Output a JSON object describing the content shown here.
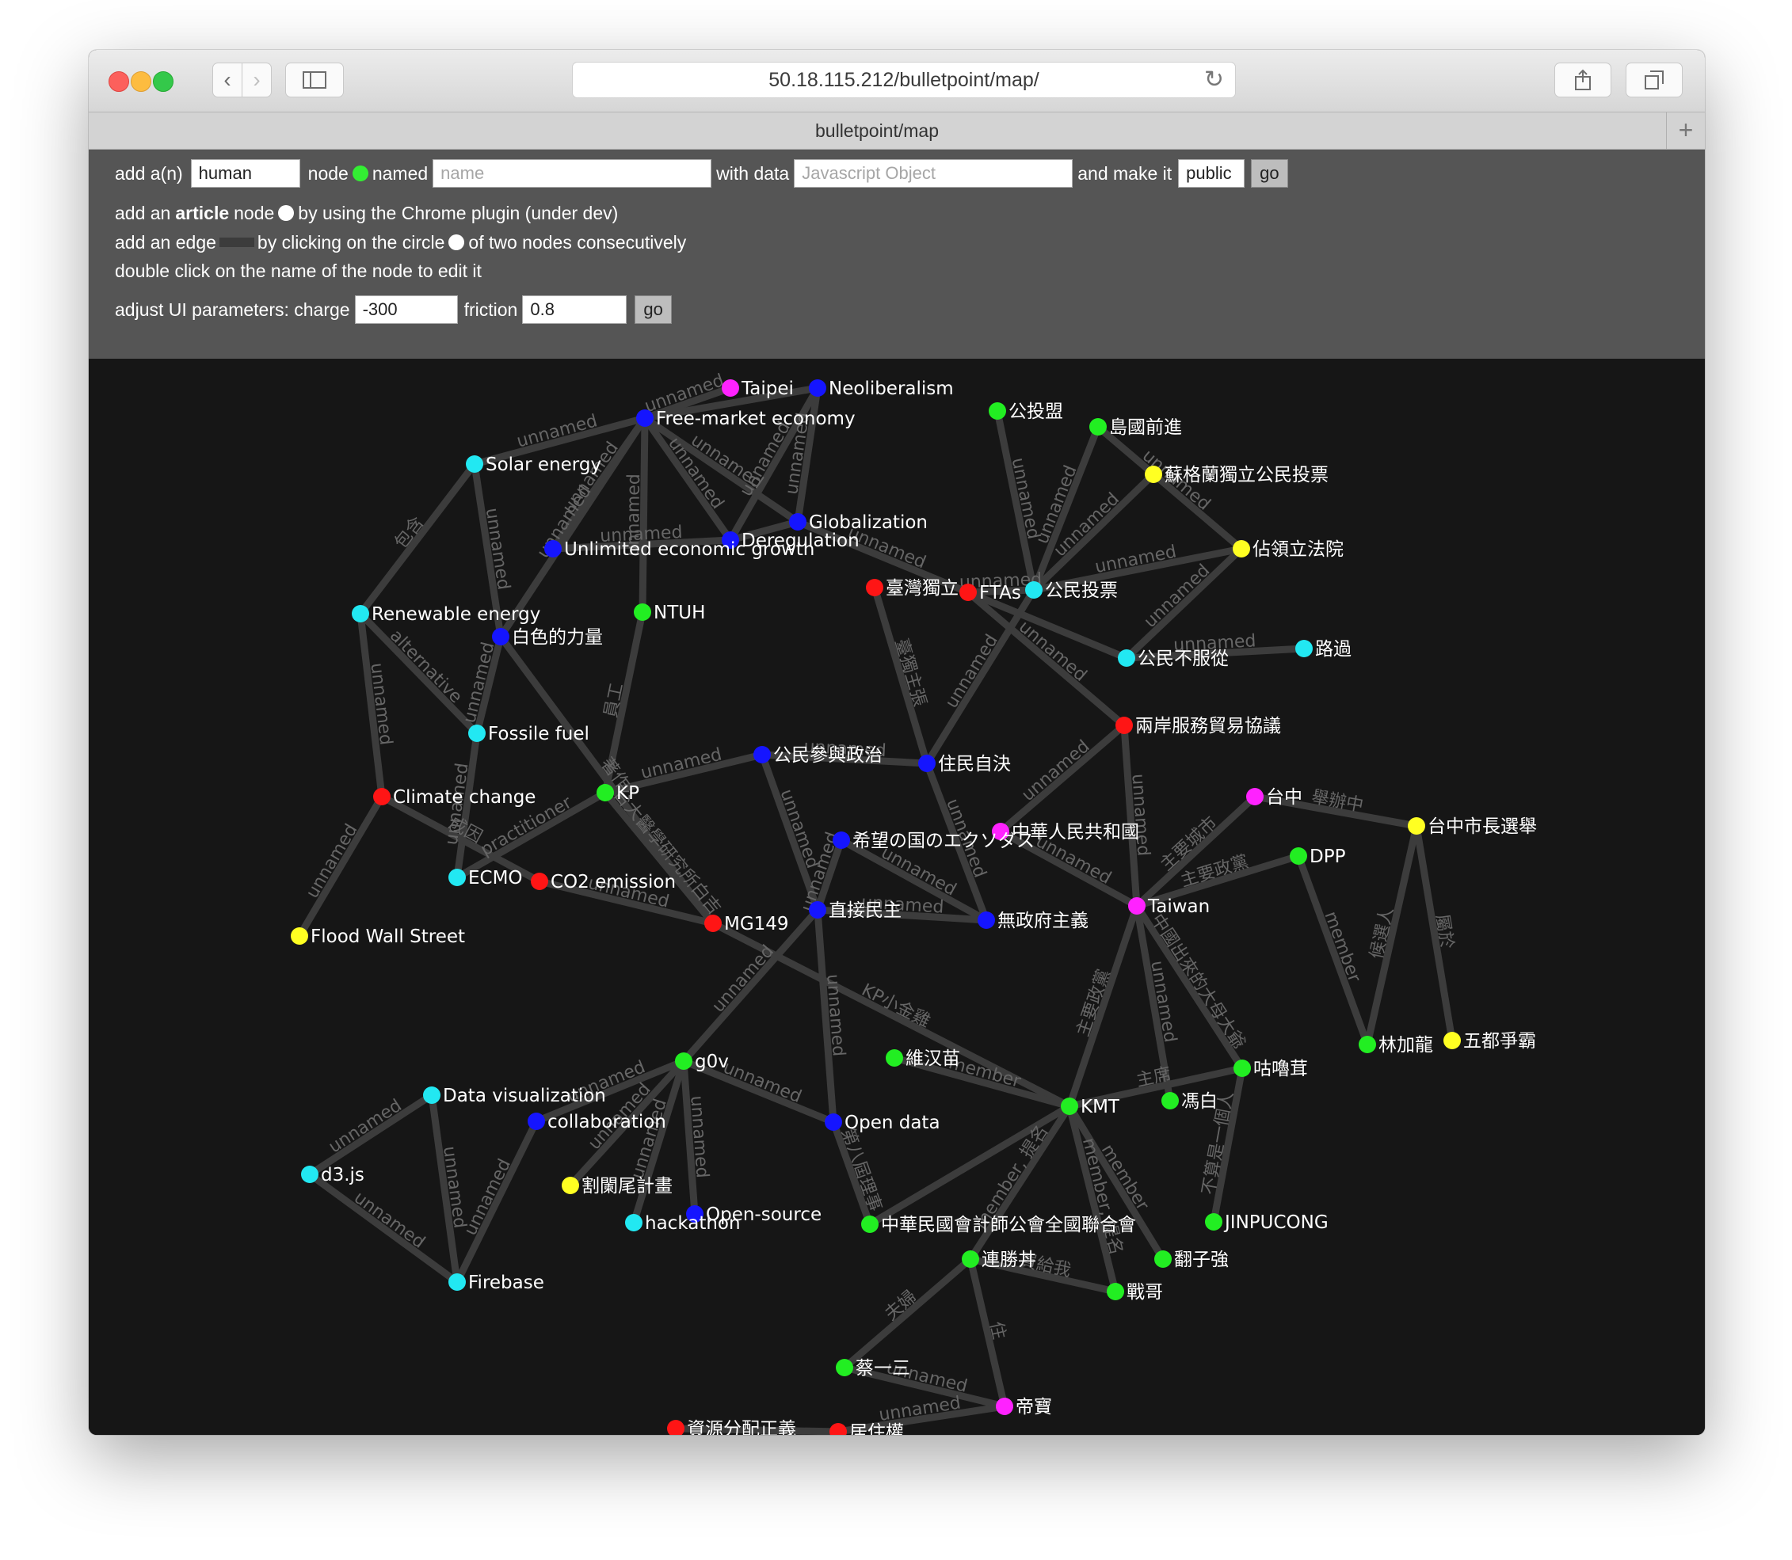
{
  "browser": {
    "url": "50.18.115.212/bulletpoint/map/",
    "tab_title": "bulletpoint/map"
  },
  "controls": {
    "line1": {
      "add_prefix": "add a(n)",
      "type_value": "human",
      "node_word": "node",
      "named_word": "named",
      "name_placeholder": "name",
      "with_data_word": "with data",
      "data_placeholder": "Javascript Object",
      "make_it_word": "and make it",
      "visibility_value": "public",
      "go_label": "go"
    },
    "line2": {
      "prefix": "add an",
      "bold": "article",
      "node_word": "node",
      "rest": "by using the Chrome plugin (under dev)"
    },
    "line3": {
      "prefix": "add an edge",
      "middle": "by clicking on the circle",
      "rest": "of two nodes consecutively"
    },
    "line4": {
      "text": "double click on the name of the node to edit it"
    },
    "line5": {
      "prefix": "adjust UI parameters: charge",
      "charge_value": "-300",
      "friction_word": "friction",
      "friction_value": "0.8",
      "go_label": "go"
    }
  },
  "colors": {
    "human_node": "#33ee33",
    "article_node": "#ffffff",
    "edge": "#3c3c3c",
    "edge_label": "#666666",
    "node_label": "#ffffff",
    "palette": {
      "green": "#22ee22",
      "blue": "#1515ff",
      "cyan": "#22e8f2",
      "red": "#ff1515",
      "magenta": "#ff22ff",
      "yellow": "#ffff22"
    }
  },
  "graph": {
    "nodes": [
      {
        "id": "taipei",
        "label": "Taipei",
        "color": "magenta"
      },
      {
        "id": "neolib",
        "label": "Neoliberalism",
        "color": "blue"
      },
      {
        "id": "fme",
        "label": "Free-market economy",
        "color": "blue"
      },
      {
        "id": "solar",
        "label": "Solar energy",
        "color": "cyan"
      },
      {
        "id": "gong",
        "label": "公投盟",
        "color": "green"
      },
      {
        "id": "dao",
        "label": "島國前進",
        "color": "green"
      },
      {
        "id": "scot",
        "label": "蘇格蘭獨立公民投票",
        "color": "yellow"
      },
      {
        "id": "glob",
        "label": "Globalization",
        "color": "blue"
      },
      {
        "id": "dereg",
        "label": "Deregulation",
        "color": "blue"
      },
      {
        "id": "ueg",
        "label": "Unlimited economic growth",
        "color": "blue"
      },
      {
        "id": "occ",
        "label": "佔領立法院",
        "color": "yellow"
      },
      {
        "id": "twind",
        "label": "臺灣獨立",
        "color": "red"
      },
      {
        "id": "ftas",
        "label": "FTAs",
        "color": "red"
      },
      {
        "id": "ref",
        "label": "公民投票",
        "color": "cyan"
      },
      {
        "id": "renew",
        "label": "Renewable energy",
        "color": "cyan"
      },
      {
        "id": "ntuh",
        "label": "NTUH",
        "color": "green"
      },
      {
        "id": "white",
        "label": "白色的力量",
        "color": "blue"
      },
      {
        "id": "civdis",
        "label": "公民不服從",
        "color": "cyan"
      },
      {
        "id": "luguo",
        "label": "路過",
        "color": "cyan"
      },
      {
        "id": "cssta",
        "label": "兩岸服務貿易協議",
        "color": "red"
      },
      {
        "id": "fossil",
        "label": "Fossile fuel",
        "color": "cyan"
      },
      {
        "id": "civpol",
        "label": "公民參與政治",
        "color": "blue"
      },
      {
        "id": "selfdet",
        "label": "住民自決",
        "color": "blue"
      },
      {
        "id": "kp",
        "label": "KP",
        "color": "green"
      },
      {
        "id": "climate",
        "label": "Climate change",
        "color": "red"
      },
      {
        "id": "taichung",
        "label": "台中",
        "color": "magenta"
      },
      {
        "id": "tcmayor",
        "label": "台中市長選舉",
        "color": "yellow"
      },
      {
        "id": "prc",
        "label": "中華人民共和國",
        "color": "magenta"
      },
      {
        "id": "hope",
        "label": "希望の国のエクソダス",
        "color": "blue"
      },
      {
        "id": "dpp",
        "label": "DPP",
        "color": "green"
      },
      {
        "id": "ecmo",
        "label": "ECMO",
        "color": "cyan"
      },
      {
        "id": "co2",
        "label": "CO2 emission",
        "color": "red"
      },
      {
        "id": "taiwan",
        "label": "Taiwan",
        "color": "magenta"
      },
      {
        "id": "direct",
        "label": "直接民主",
        "color": "blue"
      },
      {
        "id": "anarch",
        "label": "無政府主義",
        "color": "blue"
      },
      {
        "id": "flood",
        "label": "Flood Wall Street",
        "color": "yellow"
      },
      {
        "id": "mg149",
        "label": "MG149",
        "color": "red"
      },
      {
        "id": "lin",
        "label": "林加龍",
        "color": "green"
      },
      {
        "id": "wudu",
        "label": "五都爭霸",
        "color": "yellow"
      },
      {
        "id": "g0v",
        "label": "g0v",
        "color": "green"
      },
      {
        "id": "weihan",
        "label": "維汉苗",
        "color": "green"
      },
      {
        "id": "gulu",
        "label": "咕嚕茸",
        "color": "green"
      },
      {
        "id": "dataviz",
        "label": "Data visualization",
        "color": "cyan"
      },
      {
        "id": "kmt",
        "label": "KMT",
        "color": "green"
      },
      {
        "id": "fengbai",
        "label": "馮白",
        "color": "green"
      },
      {
        "id": "collab",
        "label": "collaboration",
        "color": "blue"
      },
      {
        "id": "opendata",
        "label": "Open data",
        "color": "blue"
      },
      {
        "id": "d3",
        "label": "d3.js",
        "color": "cyan"
      },
      {
        "id": "gelan",
        "label": "割闌尾計畫",
        "color": "yellow"
      },
      {
        "id": "opensource",
        "label": "Open-source",
        "color": "blue"
      },
      {
        "id": "hackathon",
        "label": "hackathon",
        "color": "cyan"
      },
      {
        "id": "cpa",
        "label": "中華民國會計師公會全國聯合會",
        "color": "green"
      },
      {
        "id": "jinpu",
        "label": "JINPUCONG",
        "color": "green"
      },
      {
        "id": "lianshengbing",
        "label": "連勝丼",
        "color": "green"
      },
      {
        "id": "fanzi",
        "label": "翻子強",
        "color": "green"
      },
      {
        "id": "firebase",
        "label": "Firebase",
        "color": "cyan"
      },
      {
        "id": "zhange",
        "label": "戰哥",
        "color": "green"
      },
      {
        "id": "caiyisan",
        "label": "蔡一三",
        "color": "green"
      },
      {
        "id": "dibao",
        "label": "帝寶",
        "color": "magenta"
      },
      {
        "id": "resdist",
        "label": "資源分配正義",
        "color": "red"
      },
      {
        "id": "housing",
        "label": "居住權",
        "color": "red"
      }
    ],
    "edges": [
      {
        "s": "taipei",
        "t": "fme",
        "label": "unnamed"
      },
      {
        "s": "neolib",
        "t": "fme",
        "label": ""
      },
      {
        "s": "neolib",
        "t": "dereg",
        "label": "unnamed"
      },
      {
        "s": "neolib",
        "t": "glob",
        "label": "unnamed"
      },
      {
        "s": "fme",
        "t": "solar",
        "label": "unnamed"
      },
      {
        "s": "fme",
        "t": "white",
        "label": "unnamed"
      },
      {
        "s": "fme",
        "t": "ueg",
        "label": "unnamed"
      },
      {
        "s": "fme",
        "t": "ntuh",
        "label": "unnamed"
      },
      {
        "s": "fme",
        "t": "dereg",
        "label": "unnamed"
      },
      {
        "s": "fme",
        "t": "glob",
        "label": "unnamed"
      },
      {
        "s": "solar",
        "t": "renew",
        "label": "包含"
      },
      {
        "s": "solar",
        "t": "white",
        "label": "unnamed"
      },
      {
        "s": "ueg",
        "t": "dereg",
        "label": "unnamed"
      },
      {
        "s": "dereg",
        "t": "glob",
        "label": ""
      },
      {
        "s": "glob",
        "t": "ftas",
        "label": "unnamed"
      },
      {
        "s": "gong",
        "t": "ref",
        "label": "unnamed"
      },
      {
        "s": "dao",
        "t": "ref",
        "label": "unnamed"
      },
      {
        "s": "dao",
        "t": "occ",
        "label": "unnamed"
      },
      {
        "s": "scot",
        "t": "ref",
        "label": "unnamed"
      },
      {
        "s": "occ",
        "t": "ref",
        "label": "unnamed"
      },
      {
        "s": "occ",
        "t": "civdis",
        "label": "unnamed"
      },
      {
        "s": "ref",
        "t": "ftas",
        "label": "unnamed"
      },
      {
        "s": "ref",
        "t": "selfdet",
        "label": "unnamed"
      },
      {
        "s": "ftas",
        "t": "cssta",
        "label": "unnamed"
      },
      {
        "s": "ftas",
        "t": "civdis",
        "label": ""
      },
      {
        "s": "civdis",
        "t": "luguo",
        "label": "unnamed"
      },
      {
        "s": "twind",
        "t": "selfdet",
        "label": "臺獨主張"
      },
      {
        "s": "renew",
        "t": "fossil",
        "label": "alternative"
      },
      {
        "s": "renew",
        "t": "climate",
        "label": "unnamed"
      },
      {
        "s": "white",
        "t": "fossil",
        "label": "unnamed"
      },
      {
        "s": "white",
        "t": "mg149",
        "label": "著作"
      },
      {
        "s": "ntuh",
        "t": "kp",
        "label": "員工"
      },
      {
        "s": "fossil",
        "t": "ecmo",
        "label": "unnamed"
      },
      {
        "s": "kp",
        "t": "civpol",
        "label": "unnamed"
      },
      {
        "s": "kp",
        "t": "mg149",
        "label": "台大醫學研究所白吉"
      },
      {
        "s": "kp",
        "t": "ecmo",
        "label": "practitioner"
      },
      {
        "s": "climate",
        "t": "flood",
        "label": "unnamed"
      },
      {
        "s": "climate",
        "t": "co2",
        "label": "成因"
      },
      {
        "s": "co2",
        "t": "mg149",
        "label": "unnamed"
      },
      {
        "s": "civpol",
        "t": "selfdet",
        "label": "unnamed"
      },
      {
        "s": "civpol",
        "t": "direct",
        "label": "unnamed"
      },
      {
        "s": "selfdet",
        "t": "anarch",
        "label": "unnamed"
      },
      {
        "s": "cssta",
        "t": "prc",
        "label": "unnamed"
      },
      {
        "s": "cssta",
        "t": "taiwan",
        "label": "unnamed"
      },
      {
        "s": "prc",
        "t": "taiwan",
        "label": "unnamed"
      },
      {
        "s": "hope",
        "t": "direct",
        "label": "unnamed"
      },
      {
        "s": "hope",
        "t": "anarch",
        "label": "unnamed"
      },
      {
        "s": "direct",
        "t": "anarch",
        "label": "unnamed"
      },
      {
        "s": "direct",
        "t": "g0v",
        "label": "unnamed"
      },
      {
        "s": "direct",
        "t": "opendata",
        "label": "unnamed"
      },
      {
        "s": "mg149",
        "t": "kmt",
        "label": "KP小金雞"
      },
      {
        "s": "taichung",
        "t": "tcmayor",
        "label": "舉辦中"
      },
      {
        "s": "taichung",
        "t": "taiwan",
        "label": "主要城市"
      },
      {
        "s": "tcmayor",
        "t": "lin",
        "label": "候選人"
      },
      {
        "s": "tcmayor",
        "t": "wudu",
        "label": "屬於"
      },
      {
        "s": "dpp",
        "t": "taiwan",
        "label": "主要政黨"
      },
      {
        "s": "dpp",
        "t": "lin",
        "label": "member"
      },
      {
        "s": "taiwan",
        "t": "kmt",
        "label": "主要政黨"
      },
      {
        "s": "taiwan",
        "t": "fengbai",
        "label": "unnamed"
      },
      {
        "s": "taiwan",
        "t": "gulu",
        "label": "中國出來的大母大爺"
      },
      {
        "s": "g0v",
        "t": "opendata",
        "label": "unnamed"
      },
      {
        "s": "g0v",
        "t": "collab",
        "label": "unnamed"
      },
      {
        "s": "g0v",
        "t": "gelan",
        "label": "unnamed"
      },
      {
        "s": "g0v",
        "t": "opensource",
        "label": "unnamed"
      },
      {
        "s": "g0v",
        "t": "hackathon",
        "label": "unnamed"
      },
      {
        "s": "weihan",
        "t": "kmt",
        "label": "member"
      },
      {
        "s": "opendata",
        "t": "cpa",
        "label": "第八屆理事"
      },
      {
        "s": "gulu",
        "t": "kmt",
        "label": "主席"
      },
      {
        "s": "gulu",
        "t": "jinpu",
        "label": "不算是一個人"
      },
      {
        "s": "dataviz",
        "t": "d3",
        "label": "unnamed"
      },
      {
        "s": "dataviz",
        "t": "firebase",
        "label": "unnamed"
      },
      {
        "s": "collab",
        "t": "firebase",
        "label": "unnamed"
      },
      {
        "s": "d3",
        "t": "firebase",
        "label": "unnamed"
      },
      {
        "s": "kmt",
        "t": "lianshengbing",
        "label": "member, 提名"
      },
      {
        "s": "kmt",
        "t": "fanzi",
        "label": "member"
      },
      {
        "s": "kmt",
        "t": "zhange",
        "label": "member, 提名"
      },
      {
        "s": "kmt",
        "t": "cpa",
        "label": ""
      },
      {
        "s": "lianshengbing",
        "t": "zhange",
        "label": "買給我"
      },
      {
        "s": "lianshengbing",
        "t": "caiyisan",
        "label": "夫婦"
      },
      {
        "s": "lianshengbing",
        "t": "dibao",
        "label": "住"
      },
      {
        "s": "caiyisan",
        "t": "dibao",
        "label": "unnamed"
      },
      {
        "s": "dibao",
        "t": "housing",
        "label": "unnamed"
      },
      {
        "s": "resdist",
        "t": "housing",
        "label": ""
      }
    ]
  }
}
